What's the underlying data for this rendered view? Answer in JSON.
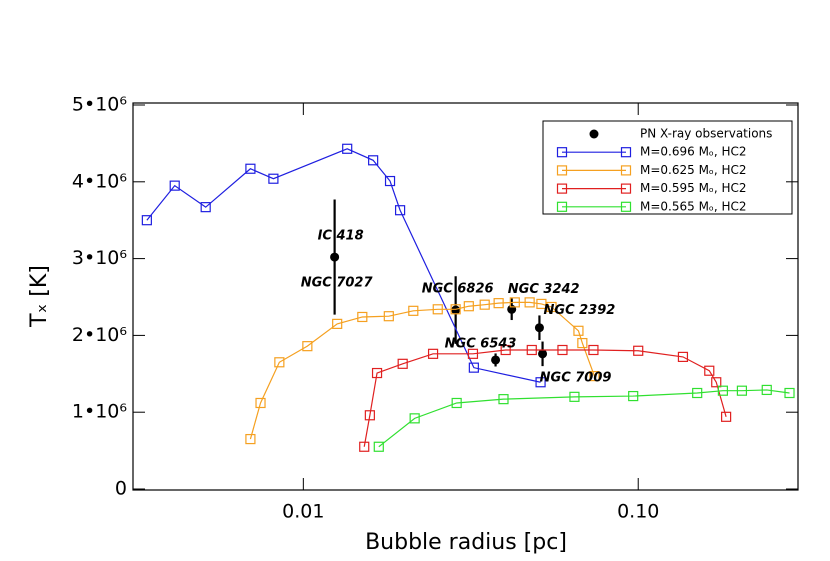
{
  "chart_data": {
    "type": "line",
    "xscale": "log",
    "xlabel": "Bubble radius [pc]",
    "ylabel": "Tₓ [K]",
    "xlim": [
      0.0031,
      0.3
    ],
    "ylim": [
      0,
      5000000
    ],
    "xticks": [
      0.01,
      {
        "value": 0.1,
        "label": "0.10"
      }
    ],
    "yticks": [
      0,
      {
        "value": 1000000,
        "label": "1•10⁶"
      },
      {
        "value": 2000000,
        "label": "2•10⁶"
      },
      {
        "value": 3000000,
        "label": "3•10⁶"
      },
      {
        "value": 4000000,
        "label": "4•10⁶"
      },
      {
        "value": 5000000,
        "label": "5•10⁶"
      }
    ],
    "legend": "upper right",
    "series": [
      {
        "name": "PN X-ray observations",
        "color": "#000000",
        "marker": "dot",
        "x": [
          0.0124,
          0.0285,
          0.0419,
          0.0507,
          0.0375,
          0.0518
        ],
        "values": [
          3020000,
          2330000,
          2340000,
          2100000,
          1680000,
          1760000
        ],
        "errors": [
          750000,
          440000,
          140000,
          160000,
          85000,
          160000
        ]
      },
      {
        "name": "M=0.696 Mₒ,  HC2",
        "color": "#1f1fe0",
        "marker": "square",
        "x": [
          0.00341,
          0.00413,
          0.00511,
          0.00695,
          0.00814,
          0.01352,
          0.01616,
          0.01815,
          0.01945,
          0.0323,
          0.0511
        ],
        "values": [
          3500000,
          3950000,
          3670000,
          4170000,
          4040000,
          4430000,
          4280000,
          4010000,
          3630000,
          1580000,
          1390000
        ]
      },
      {
        "name": "M=0.625 Mₒ,  HC2",
        "color": "#f5a020",
        "marker": "square",
        "x": [
          0.00695,
          0.00745,
          0.00848,
          0.01028,
          0.01262,
          0.015,
          0.018,
          0.0213,
          0.0252,
          0.0285,
          0.0312,
          0.0348,
          0.0383,
          0.0428,
          0.0474,
          0.0514,
          0.0551,
          0.0663,
          0.0681,
          0.074
        ],
        "values": [
          650000,
          1120000,
          1650000,
          1860000,
          2150000,
          2240000,
          2250000,
          2320000,
          2340000,
          2340000,
          2380000,
          2400000,
          2420000,
          2430000,
          2430000,
          2410000,
          2370000,
          2060000,
          1900000,
          1470000
        ]
      },
      {
        "name": "M=0.595 Mₒ,  HC2",
        "color": "#e02020",
        "marker": "square",
        "x": [
          0.0152,
          0.0158,
          0.0166,
          0.0198,
          0.0244,
          0.0321,
          0.0402,
          0.0481,
          0.0594,
          0.0735,
          0.1,
          0.136,
          0.163,
          0.171,
          0.183
        ],
        "values": [
          550000,
          960000,
          1510000,
          1630000,
          1760000,
          1760000,
          1810000,
          1810000,
          1810000,
          1810000,
          1800000,
          1720000,
          1540000,
          1390000,
          940000
        ]
      },
      {
        "name": "M=0.565 Mₒ,  HC2",
        "color": "#30e030",
        "marker": "square",
        "x": [
          0.0168,
          0.0215,
          0.0287,
          0.0396,
          0.0645,
          0.0966,
          0.15,
          0.179,
          0.204,
          0.242,
          0.283
        ],
        "values": [
          550000,
          920000,
          1120000,
          1170000,
          1200000,
          1210000,
          1250000,
          1280000,
          1280000,
          1290000,
          1250000
        ]
      }
    ],
    "annotations": [
      "IC 418",
      "NGC 7027",
      "NGC 6826",
      "NGC 3242",
      "NGC 2392",
      "NGC 6543",
      "NGC 7009"
    ]
  }
}
